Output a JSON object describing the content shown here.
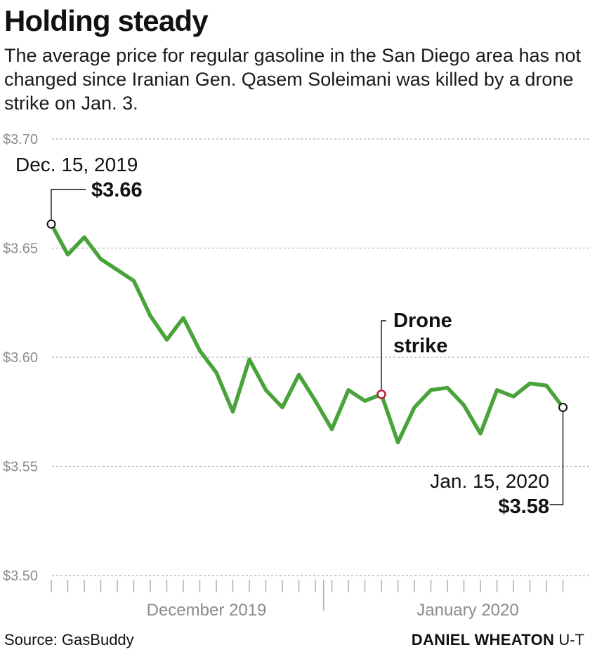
{
  "title": "Holding steady",
  "subtitle": "The average price for regular gasoline in the San Diego area has not changed since Iranian Gen. Qasem Soleimani was killed by a drone strike on Jan. 3.",
  "source": "Source: GasBuddy",
  "credit": "DANIEL WHEATON",
  "outlet": "U-T",
  "colors": {
    "line": "#4aa33a",
    "event_marker": "#b8263c",
    "grid": "#b5b5b5",
    "text": "#111111"
  },
  "chart_data": {
    "type": "line",
    "title": "Holding steady",
    "ylim": [
      3.5,
      3.7
    ],
    "y_ticks": [
      3.5,
      3.55,
      3.6,
      3.65,
      3.7
    ],
    "y_tick_labels": [
      "$3.50",
      "$3.55",
      "$3.60",
      "$3.65",
      "$3.70"
    ],
    "x_groups": [
      "December 2019",
      "January 2020"
    ],
    "grid": true,
    "legend": "none",
    "x": [
      "2019-12-15",
      "2019-12-16",
      "2019-12-17",
      "2019-12-18",
      "2019-12-19",
      "2019-12-20",
      "2019-12-21",
      "2019-12-22",
      "2019-12-23",
      "2019-12-24",
      "2019-12-25",
      "2019-12-26",
      "2019-12-27",
      "2019-12-28",
      "2019-12-29",
      "2019-12-30",
      "2019-12-31",
      "2020-01-01",
      "2020-01-02",
      "2020-01-03",
      "2020-01-04",
      "2020-01-05",
      "2020-01-06",
      "2020-01-07",
      "2020-01-08",
      "2020-01-09",
      "2020-01-10",
      "2020-01-11",
      "2020-01-12",
      "2020-01-13",
      "2020-01-14",
      "2020-01-15"
    ],
    "series": [
      {
        "values": [
          3.661,
          3.647,
          3.655,
          3.645,
          3.64,
          3.635,
          3.619,
          3.608,
          3.618,
          3.603,
          3.593,
          3.575,
          3.599,
          3.585,
          3.577,
          3.592,
          3.58,
          3.567,
          3.585,
          3.58,
          3.583,
          3.561,
          3.577,
          3.585,
          3.586,
          3.578,
          3.565,
          3.585,
          3.582,
          3.588,
          3.587,
          3.577
        ]
      }
    ],
    "annotations": [
      {
        "date": "Dec. 15, 2019",
        "value": "$3.66"
      },
      {
        "label_lines": [
          "Drone",
          "strike"
        ]
      },
      {
        "date": "Jan. 15, 2020",
        "value": "$3.58"
      }
    ]
  }
}
